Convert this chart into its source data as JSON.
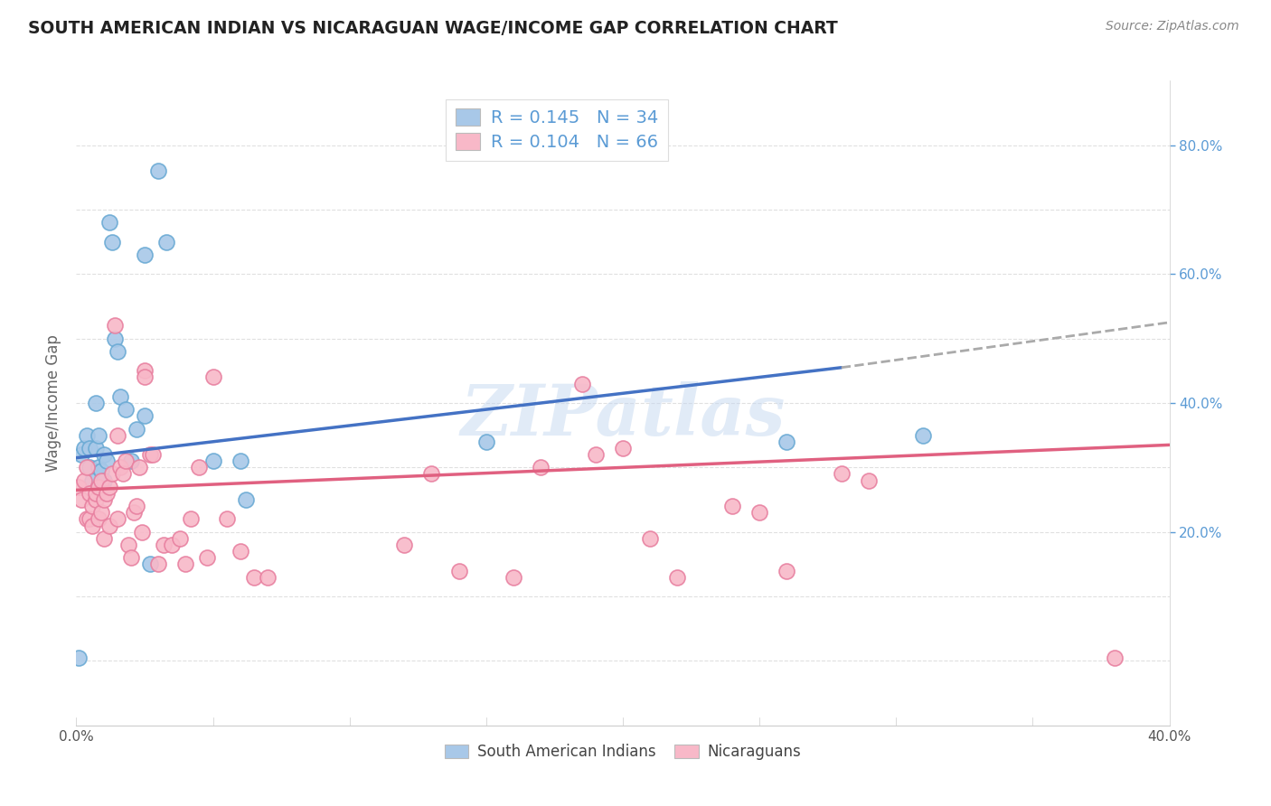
{
  "title": "SOUTH AMERICAN INDIAN VS NICARAGUAN WAGE/INCOME GAP CORRELATION CHART",
  "source": "Source: ZipAtlas.com",
  "ylabel": "Wage/Income Gap",
  "xlim": [
    0.0,
    0.4
  ],
  "ylim": [
    -0.1,
    0.9
  ],
  "legend_R_blue": "0.145",
  "legend_N_blue": "34",
  "legend_R_pink": "0.104",
  "legend_N_pink": "66",
  "blue_color": "#A8C8E8",
  "blue_edge_color": "#6AAAD4",
  "pink_color": "#F8B8C8",
  "pink_edge_color": "#E880A0",
  "blue_line_color": "#4472C4",
  "pink_line_color": "#E06080",
  "dashed_line_color": "#AAAAAA",
  "watermark": "ZIPatlas",
  "blue_scatter_x": [
    0.001,
    0.002,
    0.003,
    0.004,
    0.005,
    0.005,
    0.006,
    0.007,
    0.007,
    0.008,
    0.008,
    0.009,
    0.01,
    0.01,
    0.011,
    0.012,
    0.013,
    0.014,
    0.015,
    0.016,
    0.018,
    0.02,
    0.022,
    0.025,
    0.025,
    0.027,
    0.03,
    0.033,
    0.05,
    0.06,
    0.062,
    0.15,
    0.26,
    0.31
  ],
  "blue_scatter_y": [
    0.005,
    0.32,
    0.33,
    0.35,
    0.3,
    0.33,
    0.28,
    0.33,
    0.4,
    0.35,
    0.3,
    0.295,
    0.28,
    0.32,
    0.31,
    0.68,
    0.65,
    0.5,
    0.48,
    0.41,
    0.39,
    0.31,
    0.36,
    0.38,
    0.63,
    0.15,
    0.76,
    0.65,
    0.31,
    0.31,
    0.25,
    0.34,
    0.34,
    0.35
  ],
  "pink_scatter_x": [
    0.001,
    0.002,
    0.003,
    0.004,
    0.004,
    0.005,
    0.005,
    0.006,
    0.006,
    0.007,
    0.007,
    0.008,
    0.008,
    0.009,
    0.009,
    0.01,
    0.01,
    0.011,
    0.012,
    0.012,
    0.013,
    0.014,
    0.015,
    0.015,
    0.016,
    0.017,
    0.018,
    0.019,
    0.02,
    0.021,
    0.022,
    0.023,
    0.024,
    0.025,
    0.025,
    0.027,
    0.028,
    0.03,
    0.032,
    0.035,
    0.038,
    0.04,
    0.042,
    0.045,
    0.048,
    0.05,
    0.055,
    0.06,
    0.065,
    0.07,
    0.12,
    0.13,
    0.14,
    0.16,
    0.17,
    0.185,
    0.19,
    0.2,
    0.21,
    0.22,
    0.24,
    0.25,
    0.26,
    0.28,
    0.29,
    0.38
  ],
  "pink_scatter_y": [
    0.27,
    0.25,
    0.28,
    0.3,
    0.22,
    0.22,
    0.26,
    0.21,
    0.24,
    0.25,
    0.26,
    0.22,
    0.27,
    0.23,
    0.28,
    0.19,
    0.25,
    0.26,
    0.21,
    0.27,
    0.29,
    0.52,
    0.22,
    0.35,
    0.3,
    0.29,
    0.31,
    0.18,
    0.16,
    0.23,
    0.24,
    0.3,
    0.2,
    0.45,
    0.44,
    0.32,
    0.32,
    0.15,
    0.18,
    0.18,
    0.19,
    0.15,
    0.22,
    0.3,
    0.16,
    0.44,
    0.22,
    0.17,
    0.13,
    0.13,
    0.18,
    0.29,
    0.14,
    0.13,
    0.3,
    0.43,
    0.32,
    0.33,
    0.19,
    0.13,
    0.24,
    0.23,
    0.14,
    0.29,
    0.28,
    0.005
  ],
  "blue_trend_x": [
    0.0,
    0.28
  ],
  "blue_trend_y": [
    0.315,
    0.455
  ],
  "pink_trend_x": [
    0.0,
    0.4
  ],
  "pink_trend_y": [
    0.265,
    0.335
  ],
  "dashed_trend_x": [
    0.28,
    0.4
  ],
  "dashed_trend_y": [
    0.455,
    0.525
  ],
  "background_color": "#FFFFFF",
  "grid_color": "#DDDDDD",
  "right_tick_color": "#5B9BD5",
  "xtick_positions": [
    0.0,
    0.05,
    0.1,
    0.15,
    0.2,
    0.25,
    0.3,
    0.35,
    0.4
  ],
  "ytick_right_positions": [
    0.2,
    0.4,
    0.6,
    0.8
  ],
  "ytick_right_labels": [
    "20.0%",
    "40.0%",
    "60.0%",
    "80.0%"
  ]
}
